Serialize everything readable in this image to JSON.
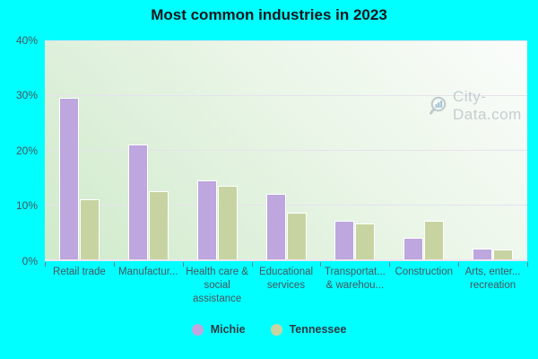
{
  "title": "Most common industries in 2023",
  "watermark": {
    "text": "City-Data.com"
  },
  "colors": {
    "background": "#00ffff",
    "michie_bar": "#bda7de",
    "tennessee_bar": "#c7d4a2",
    "plot_gradient_start": "#fbfdfb",
    "plot_gradient_end": "#cfeacb",
    "gridline": "#e6e2ee",
    "axis_text": "#47545d",
    "title_text": "#16161e",
    "watermark_text": "#bcc6cc"
  },
  "legend": [
    {
      "label": "Michie",
      "color": "#bda7de"
    },
    {
      "label": "Tennessee",
      "color": "#c7d4a2"
    }
  ],
  "chart_data": {
    "type": "bar",
    "title": "Most common industries in 2023",
    "categories": [
      "Retail trade",
      "Manufactur...",
      "Health care & social assistance",
      "Educational services",
      "Transportat... & warehou...",
      "Construction",
      "Arts, enter... recreation"
    ],
    "series": [
      {
        "name": "Michie",
        "values": [
          29.5,
          21,
          14.5,
          12,
          7,
          4,
          2
        ]
      },
      {
        "name": "Tennessee",
        "values": [
          11,
          12.5,
          13.5,
          8.5,
          6.5,
          7,
          1.8
        ]
      }
    ],
    "xlabel": "",
    "ylabel": "",
    "ylim": [
      0,
      40
    ],
    "yticks": [
      "0%",
      "10%",
      "20%",
      "30%",
      "40%"
    ],
    "grid": true,
    "legend_position": "bottom"
  }
}
